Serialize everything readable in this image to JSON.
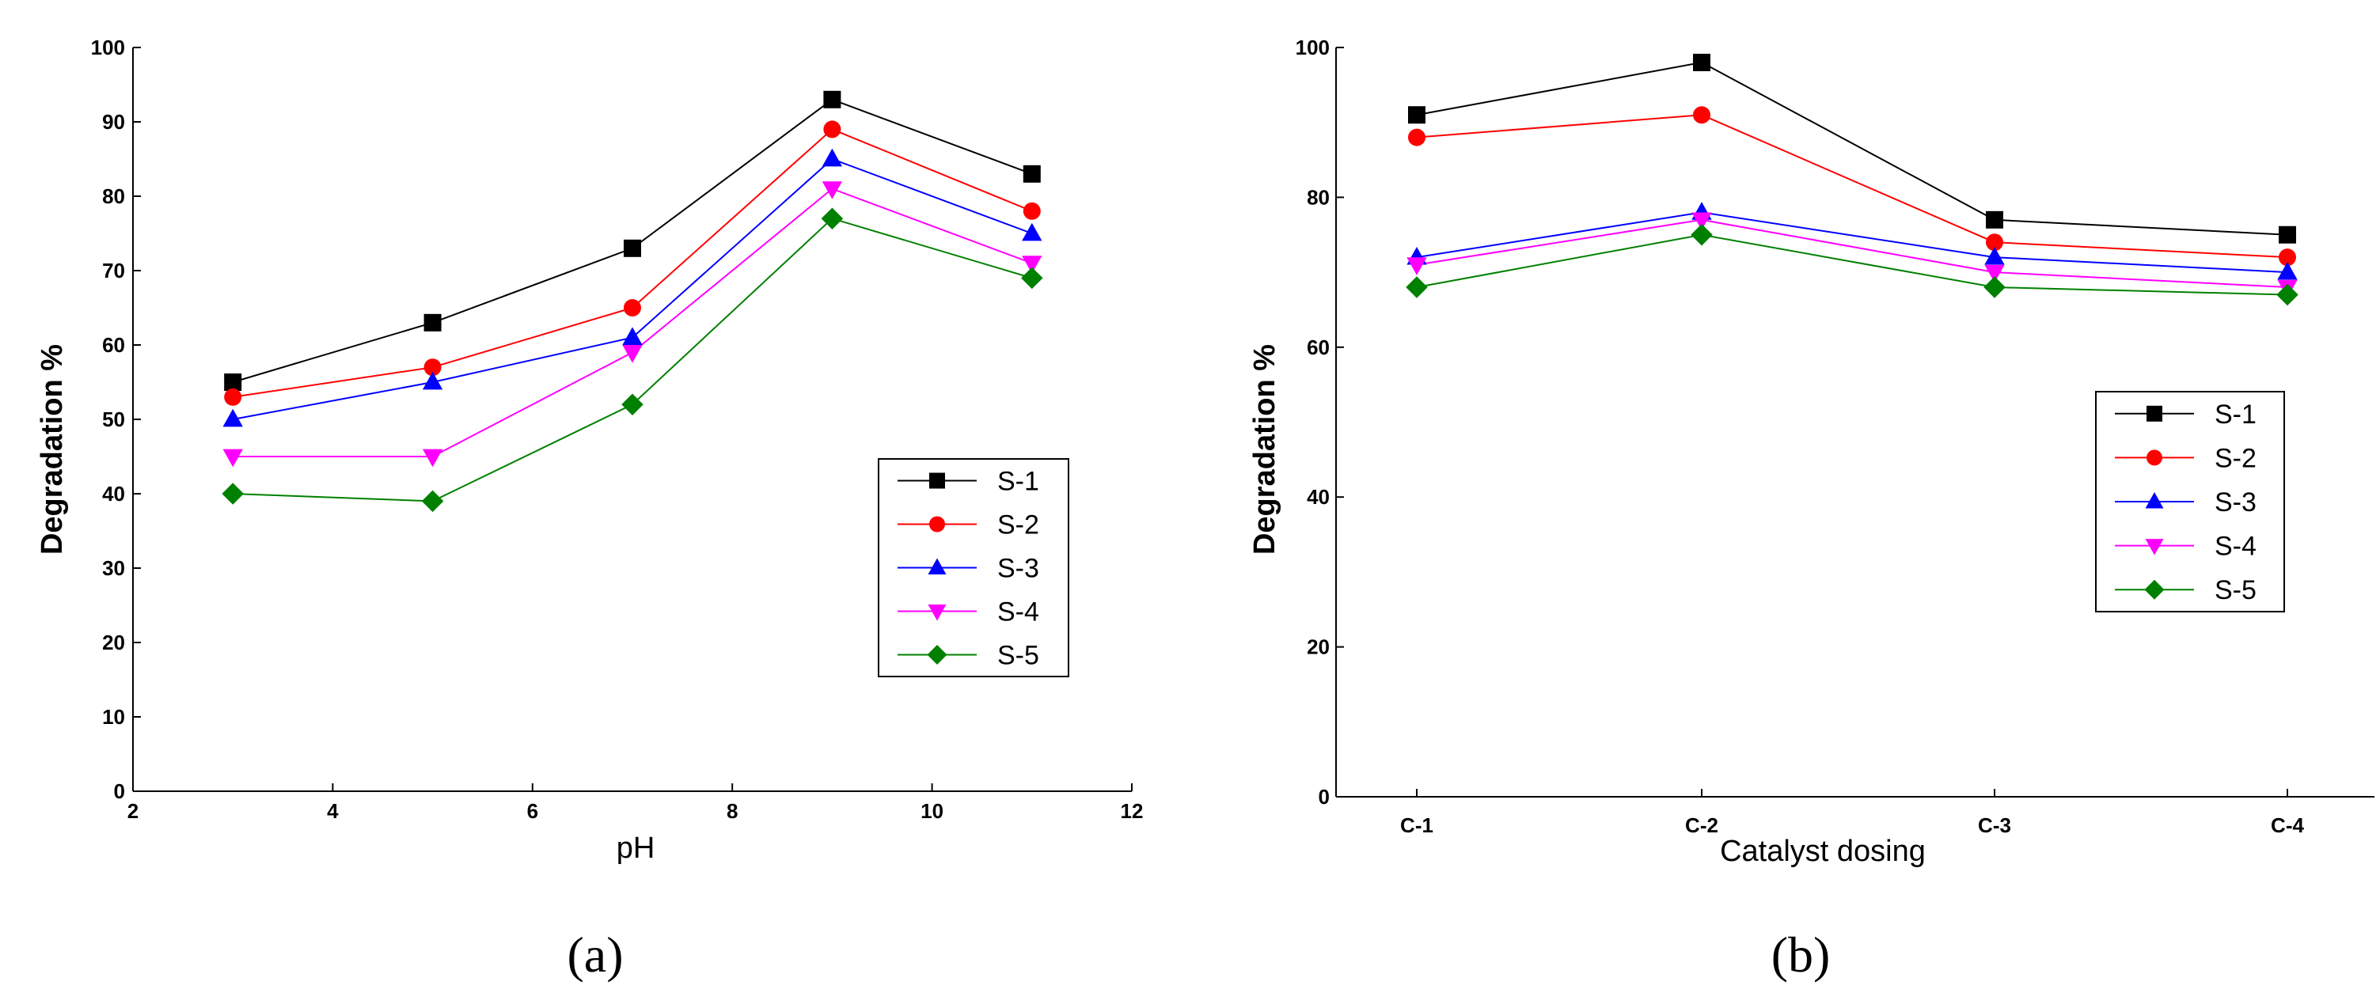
{
  "chart_data": [
    {
      "type": "line",
      "panel_label": "(a)",
      "xlabel": "pH",
      "ylabel": "Degradation %",
      "xlim": [
        2,
        12
      ],
      "ylim": [
        0,
        100
      ],
      "xticks": [
        "2",
        "4",
        "6",
        "8",
        "10",
        "12"
      ],
      "yticks": [
        "0",
        "10",
        "20",
        "30",
        "40",
        "50",
        "60",
        "70",
        "80",
        "90",
        "100"
      ],
      "x": [
        3,
        5,
        7,
        9,
        11
      ],
      "legend_position": "right",
      "series": [
        {
          "name": "S-1",
          "color": "#000000",
          "marker": "square",
          "values": [
            55,
            63,
            73,
            93,
            83
          ]
        },
        {
          "name": "S-2",
          "color": "#ff0000",
          "marker": "circle",
          "values": [
            53,
            57,
            65,
            89,
            78
          ]
        },
        {
          "name": "S-3",
          "color": "#0000ff",
          "marker": "triangle-up",
          "values": [
            50,
            55,
            61,
            85,
            75
          ]
        },
        {
          "name": "S-4",
          "color": "#ff00ff",
          "marker": "triangle-down",
          "values": [
            45,
            45,
            59,
            81,
            71
          ]
        },
        {
          "name": "S-5",
          "color": "#008000",
          "marker": "diamond",
          "values": [
            40,
            39,
            52,
            77,
            69
          ]
        }
      ]
    },
    {
      "type": "line",
      "panel_label": "(b)",
      "xlabel": "Catalyst dosing",
      "ylabel": "Degradation %",
      "ylim": [
        0,
        100
      ],
      "categories": [
        "C-1",
        "C-2",
        "C-3",
        "C-4"
      ],
      "yticks": [
        "0",
        "20",
        "40",
        "60",
        "80",
        "100"
      ],
      "legend_position": "right",
      "series": [
        {
          "name": "S-1",
          "color": "#000000",
          "marker": "square",
          "values": [
            91,
            98,
            77,
            75
          ]
        },
        {
          "name": "S-2",
          "color": "#ff0000",
          "marker": "circle",
          "values": [
            88,
            91,
            74,
            72
          ]
        },
        {
          "name": "S-3",
          "color": "#0000ff",
          "marker": "triangle-up",
          "values": [
            72,
            78,
            72,
            70
          ]
        },
        {
          "name": "S-4",
          "color": "#ff00ff",
          "marker": "triangle-down",
          "values": [
            71,
            77,
            70,
            68
          ]
        },
        {
          "name": "S-5",
          "color": "#008000",
          "marker": "diamond",
          "values": [
            68,
            75,
            68,
            67
          ]
        }
      ]
    }
  ]
}
